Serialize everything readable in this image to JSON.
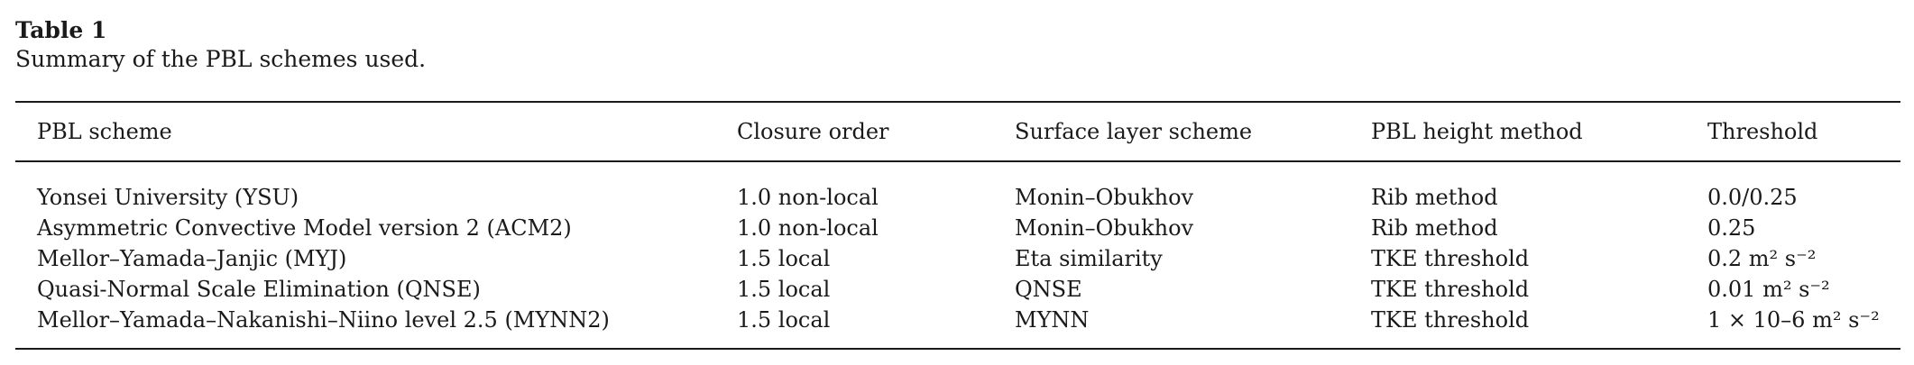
{
  "caption": {
    "label": "Table 1",
    "text": "Summary of the PBL schemes used."
  },
  "table": {
    "headers": [
      "PBL scheme",
      "Closure order",
      "Surface layer scheme",
      "PBL height method",
      "Threshold"
    ],
    "rows": [
      [
        "Yonsei University (YSU)",
        "1.0 non-local",
        "Monin–Obukhov",
        "Rib method",
        "0.0/0.25"
      ],
      [
        "Asymmetric Convective Model version 2 (ACM2)",
        "1.0 non-local",
        "Monin–Obukhov",
        "Rib method",
        "0.25"
      ],
      [
        "Mellor–Yamada–Janjic (MYJ)",
        "1.5 local",
        "Eta similarity",
        "TKE threshold",
        "0.2 m² s⁻²"
      ],
      [
        "Quasi-Normal Scale Elimination (QNSE)",
        "1.5 local",
        "QNSE",
        "TKE threshold",
        "0.01 m² s⁻²"
      ],
      [
        "Mellor–Yamada–Nakanishi–Niino level 2.5 (MYNN2)",
        "1.5 local",
        "MYNN",
        "TKE threshold",
        "1 × 10–6 m² s⁻²"
      ]
    ]
  }
}
